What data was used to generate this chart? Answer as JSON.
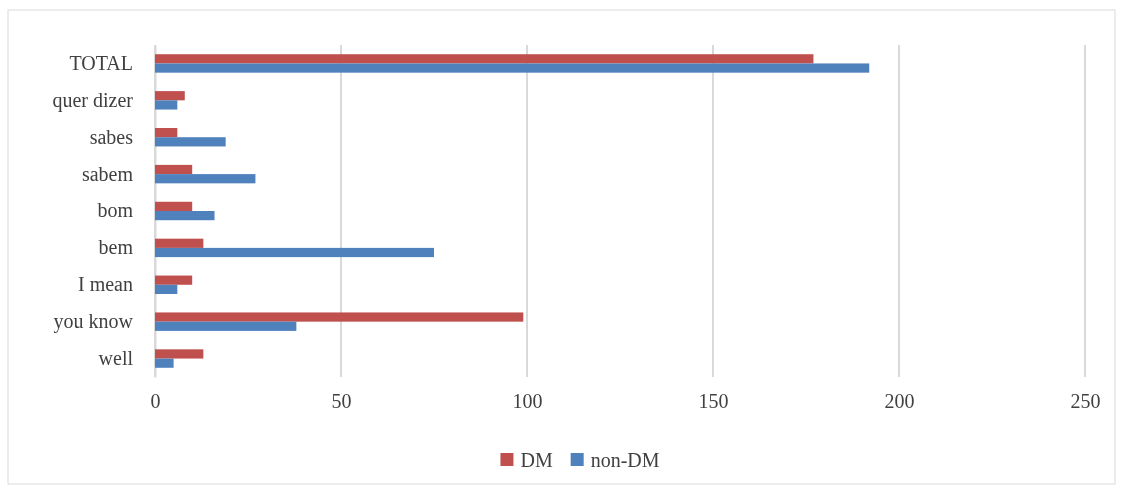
{
  "chart_data": {
    "type": "bar",
    "orientation": "horizontal",
    "categories": [
      "TOTAL",
      "quer dizer",
      "sabes",
      "sabem",
      "bom",
      "bem",
      "I mean",
      "you know",
      "well"
    ],
    "series": [
      {
        "name": "DM",
        "color": "#c0504d",
        "values": [
          177,
          8,
          6,
          10,
          10,
          13,
          10,
          99,
          13
        ]
      },
      {
        "name": "non-DM",
        "color": "#4f81bd",
        "values": [
          192,
          6,
          19,
          27,
          16,
          75,
          6,
          38,
          5
        ]
      }
    ],
    "xlim": [
      0,
      250
    ],
    "xticks": [
      0,
      50,
      100,
      150,
      200,
      250
    ],
    "grid": "x",
    "legend": "bottom"
  }
}
